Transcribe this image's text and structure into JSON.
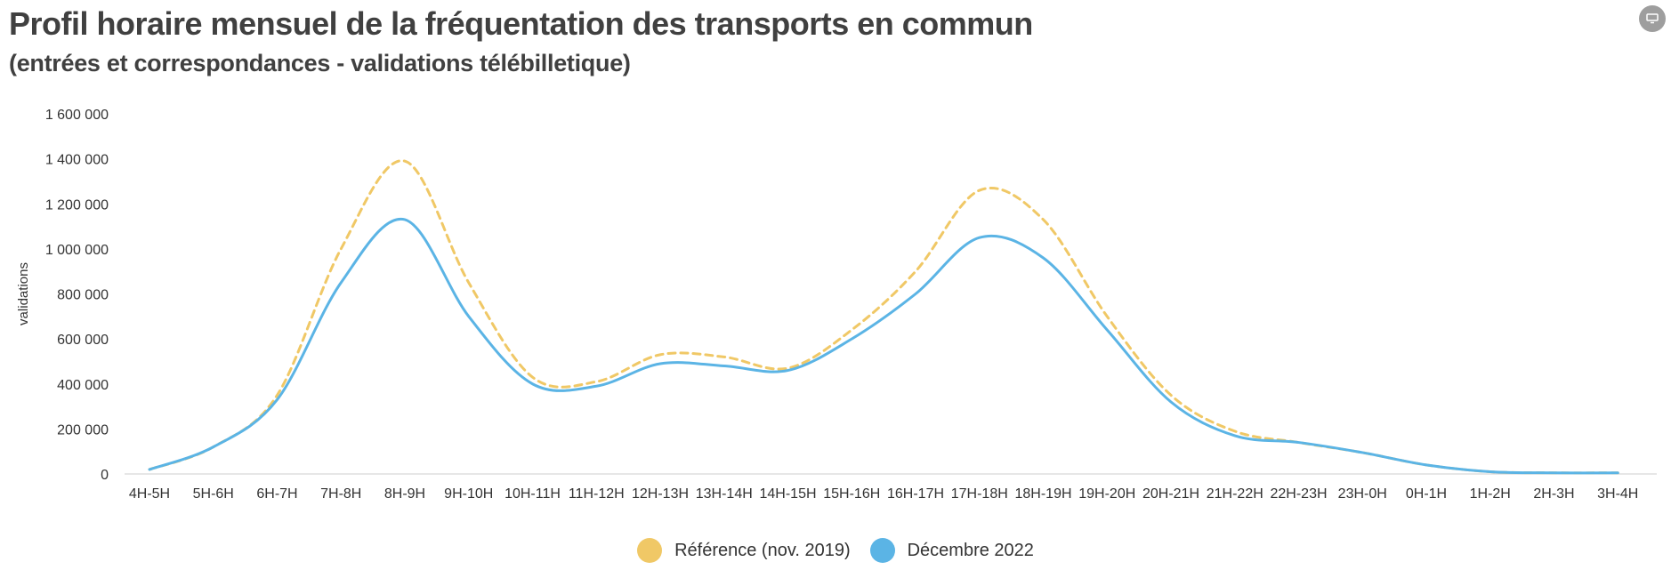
{
  "title": "Profil horaire mensuel de la fréquentation des transports en commun",
  "subtitle": "(entrées et correspondances - validations télébilletique)",
  "export_icon": "screen-icon",
  "colors": {
    "reference": "#f0c866",
    "current": "#5bb4e5",
    "axis": "#cccccc"
  },
  "chart_data": {
    "type": "line",
    "title": "Profil horaire mensuel de la fréquentation des transports en commun",
    "subtitle": "(entrées et correspondances - validations télébilletique)",
    "xlabel": "",
    "ylabel": "validations",
    "ylim": [
      0,
      1600000
    ],
    "yticks": [
      0,
      200000,
      400000,
      600000,
      800000,
      1000000,
      1200000,
      1400000,
      1600000
    ],
    "ytick_labels": [
      "0",
      "200 000",
      "400 000",
      "600 000",
      "800 000",
      "1 000 000",
      "1 200 000",
      "1 400 000",
      "1 600 000"
    ],
    "categories": [
      "4H-5H",
      "5H-6H",
      "6H-7H",
      "7H-8H",
      "8H-9H",
      "9H-10H",
      "10H-11H",
      "11H-12H",
      "12H-13H",
      "13H-14H",
      "14H-15H",
      "15H-16H",
      "16H-17H",
      "17H-18H",
      "18H-19H",
      "19H-20H",
      "20H-21H",
      "21H-22H",
      "22H-23H",
      "23H-0H",
      "0H-1H",
      "1H-2H",
      "2H-3H",
      "3H-4H"
    ],
    "series": [
      {
        "name": "Référence (nov. 2019)",
        "style": "dashed",
        "color": "#f0c866",
        "values": [
          20000,
          120000,
          350000,
          1000000,
          1390000,
          850000,
          430000,
          410000,
          530000,
          520000,
          470000,
          640000,
          900000,
          1260000,
          1130000,
          700000,
          350000,
          190000,
          140000,
          95000,
          40000,
          10000,
          5000,
          5000
        ]
      },
      {
        "name": "Décembre 2022",
        "style": "solid",
        "color": "#5bb4e5",
        "values": [
          20000,
          120000,
          330000,
          850000,
          1130000,
          700000,
          400000,
          390000,
          490000,
          480000,
          460000,
          600000,
          800000,
          1050000,
          960000,
          640000,
          320000,
          170000,
          140000,
          95000,
          40000,
          10000,
          5000,
          5000
        ]
      }
    ],
    "grid": false,
    "legend_position": "bottom-center"
  }
}
